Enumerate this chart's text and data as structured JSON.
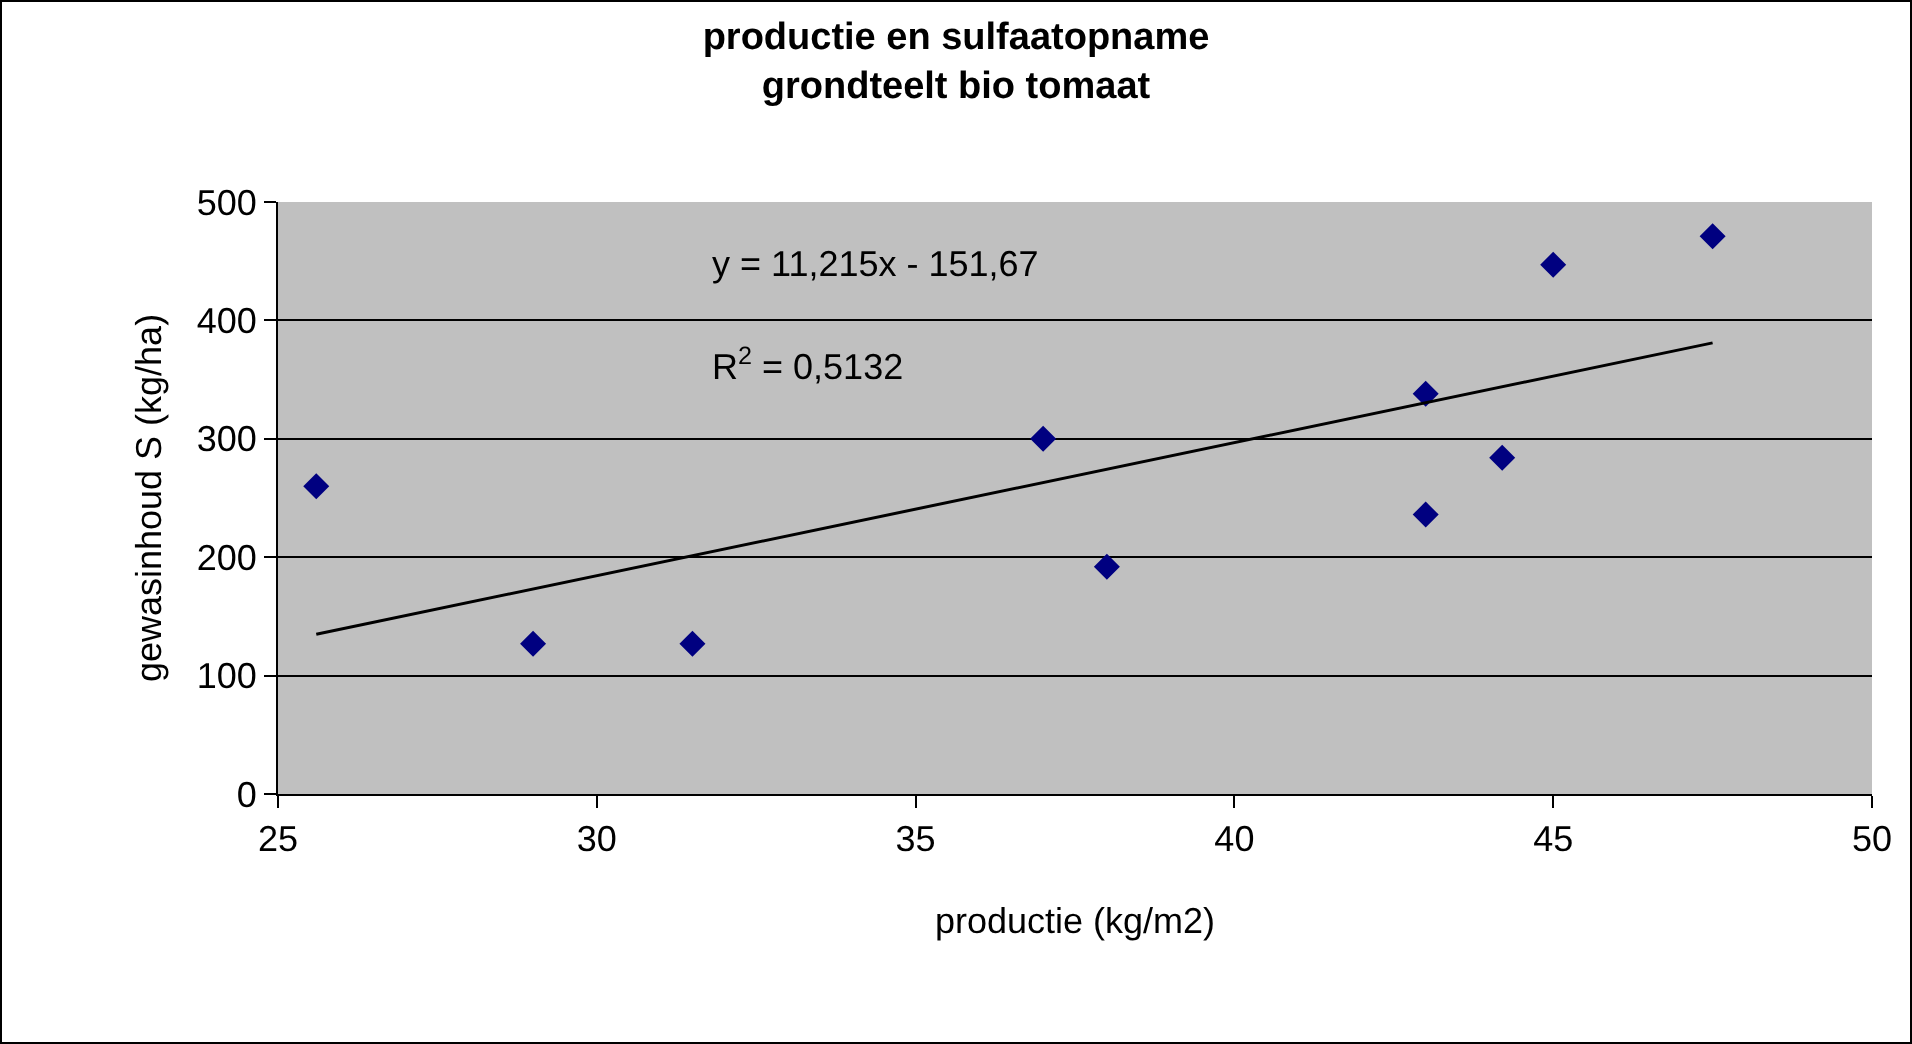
{
  "chart_data": {
    "type": "scatter",
    "title": "productie en sulfaatopname\ngrondteelt bio tomaat",
    "xlabel": "productie (kg/m2)",
    "ylabel": "gewasinhoud S (kg/ha)",
    "annotations": [
      "y = 11,215x - 151,67",
      "R$^{2}$ = 0,5132"
    ],
    "series": [
      {
        "color": "#000080",
        "x": [
          25.6,
          29.0,
          31.5,
          37.0,
          38.0,
          43.0,
          43.0,
          44.2,
          45.0,
          47.5
        ],
        "values": [
          260,
          127,
          127,
          300,
          192,
          338,
          236,
          284,
          447,
          471
        ],
        "marker": "diamond"
      },
      {
        "type": "line",
        "color": "#000000",
        "x": [
          25.6,
          47.5
        ],
        "values": [
          135,
          381
        ],
        "marker": "none",
        "line_style": "solid"
      }
    ],
    "xlim": [
      25,
      50
    ],
    "xticks": [
      25,
      30,
      35,
      40,
      45,
      50
    ],
    "ylim": [
      0,
      500
    ],
    "yticks": [
      0,
      100,
      200,
      300,
      400,
      500
    ],
    "grid": "y"
  }
}
